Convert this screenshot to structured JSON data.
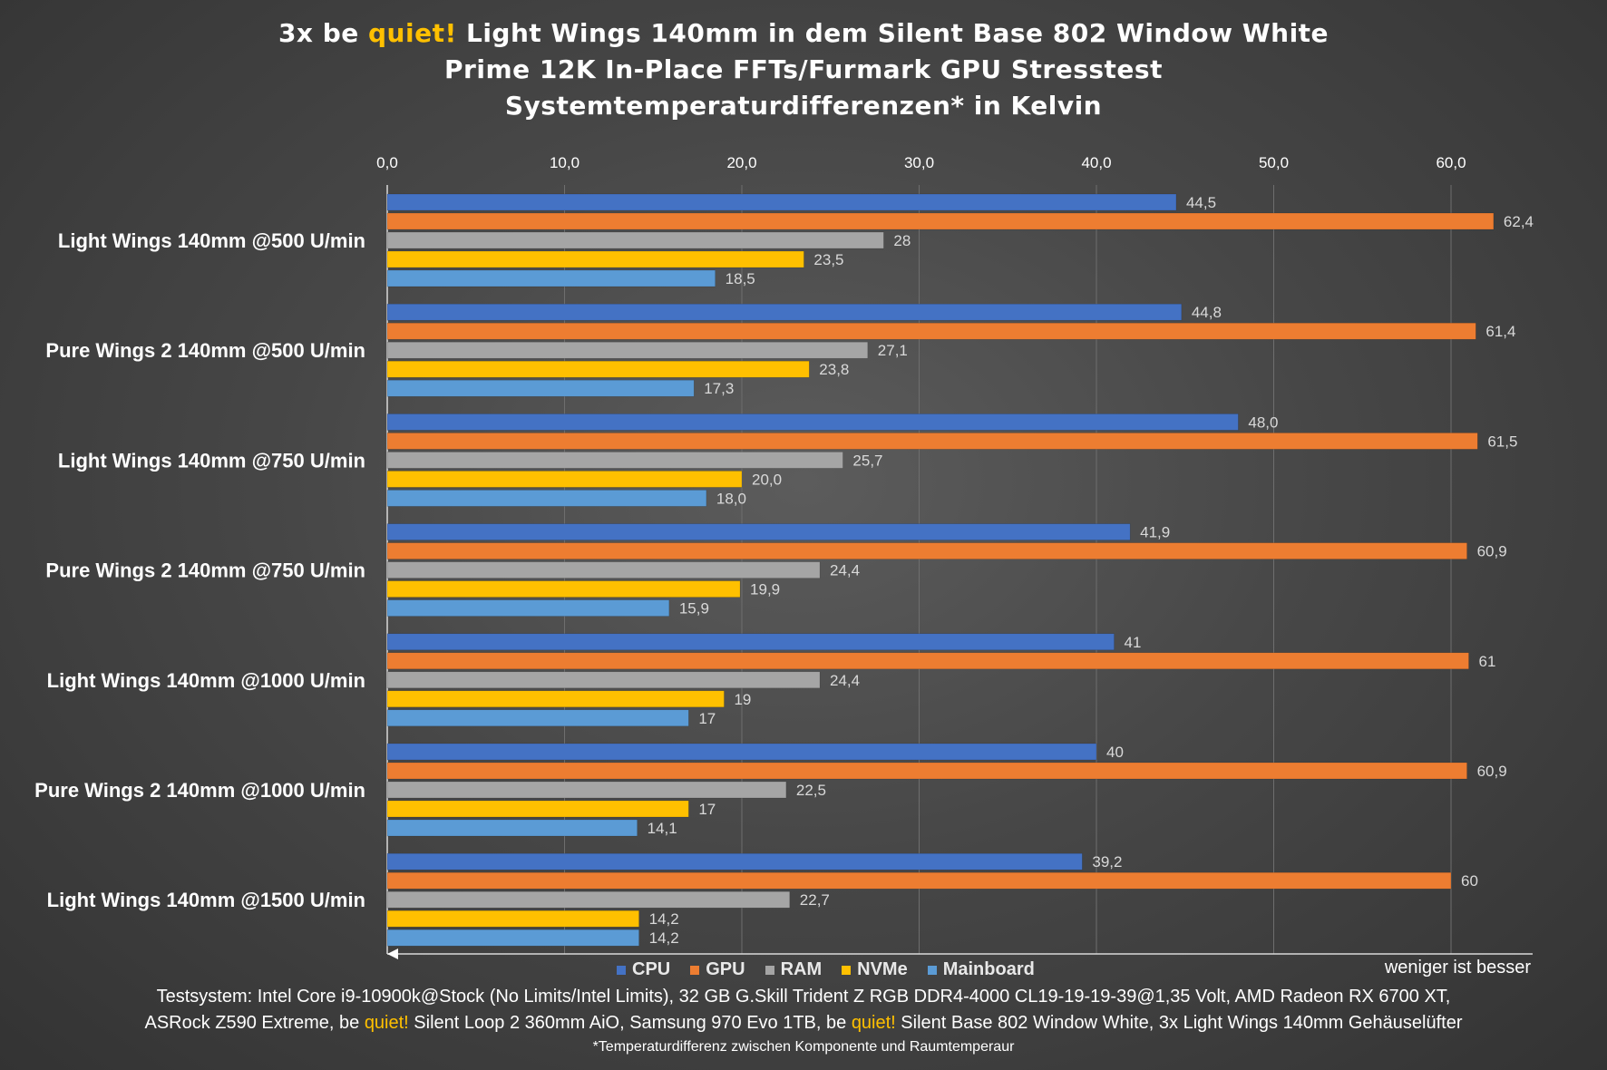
{
  "title": {
    "line1_prefix": "3x be ",
    "line1_brand": "quiet!",
    "line1_suffix": " Light Wings 140mm in dem Silent Base 802 Window White",
    "line2": "Prime 12K In-Place FFTs/Furmark GPU Stresstest",
    "line3": "Systemtemperaturdifferenzen* in Kelvin"
  },
  "colors": {
    "CPU": "#4472c4",
    "GPU": "#ed7d31",
    "RAM": "#a5a5a5",
    "NVMe": "#ffc000",
    "Mainboard": "#5b9bd5",
    "brand": "#ffc000"
  },
  "chart_data": {
    "type": "bar",
    "orientation": "horizontal",
    "xlim": [
      0,
      62.4
    ],
    "xticks": [
      "0,0",
      "10,0",
      "20,0",
      "30,0",
      "40,0",
      "50,0",
      "60,0"
    ],
    "xtick_values": [
      0,
      10,
      20,
      30,
      40,
      50,
      60
    ],
    "grid": true,
    "legend_position": "bottom",
    "categories": [
      "Light Wings 140mm @500 U/min",
      "Pure Wings 2 140mm @500 U/min",
      "Light Wings 140mm @750 U/min",
      "Pure Wings 2 140mm @750 U/min",
      "Light Wings 140mm @1000 U/min",
      "Pure Wings 2 140mm @1000 U/min",
      "Light Wings 140mm @1500 U/min"
    ],
    "series": [
      {
        "name": "CPU",
        "values": [
          44.5,
          44.8,
          48.0,
          41.9,
          41,
          40,
          39.2
        ],
        "labels": [
          "44,5",
          "44,8",
          "48,0",
          "41,9",
          "41",
          "40",
          "39,2"
        ]
      },
      {
        "name": "GPU",
        "values": [
          62.4,
          61.4,
          61.5,
          60.9,
          61,
          60.9,
          60
        ],
        "labels": [
          "62,4",
          "61,4",
          "61,5",
          "60,9",
          "61",
          "60,9",
          "60"
        ]
      },
      {
        "name": "RAM",
        "values": [
          28,
          27.1,
          25.7,
          24.4,
          24.4,
          22.5,
          22.7
        ],
        "labels": [
          "28",
          "27,1",
          "25,7",
          "24,4",
          "24,4",
          "22,5",
          "22,7"
        ]
      },
      {
        "name": "NVMe",
        "values": [
          23.5,
          23.8,
          20.0,
          19.9,
          19,
          17,
          14.2
        ],
        "labels": [
          "23,5",
          "23,8",
          "20,0",
          "19,9",
          "19",
          "17",
          "14,2"
        ]
      },
      {
        "name": "Mainboard",
        "values": [
          18.5,
          17.3,
          18.0,
          15.9,
          17,
          14.1,
          14.2
        ],
        "labels": [
          "18,5",
          "17,3",
          "18,0",
          "15,9",
          "17",
          "14,1",
          "14,2"
        ]
      }
    ]
  },
  "note_right": "weniger ist besser",
  "footer": {
    "line1": "Testsystem: Intel Core i9-10900k@Stock (No Limits/Intel Limits), 32 GB G.Skill Trident Z RGB DDR4-4000 CL19-19-19-39@1,35 Volt, AMD Radeon RX 6700 XT,",
    "line2_a": "ASRock Z590 Extreme, be ",
    "line2_b": "quiet!",
    "line2_c": " Silent Loop 2 360mm AiO, Samsung 970 Evo 1TB, be ",
    "line2_d": "quiet!",
    "line2_e": " Silent Base 802 Window White, 3x Light Wings 140mm Gehäuselüfter",
    "line3": "*Temperaturdifferenz zwischen Komponente und Raumtemperaur"
  }
}
